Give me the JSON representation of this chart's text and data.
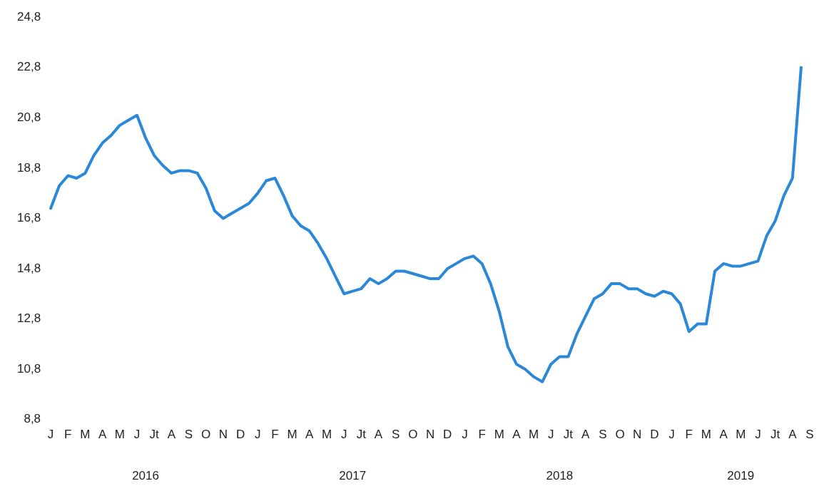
{
  "chart_data": {
    "type": "line",
    "categories": [
      "J",
      null,
      "F",
      null,
      "M",
      null,
      "A",
      null,
      "M",
      null,
      "J",
      null,
      "Jt",
      null,
      "A",
      null,
      "S",
      null,
      "O",
      null,
      "N",
      null,
      "D",
      null,
      "J",
      null,
      "F",
      null,
      "M",
      null,
      "A",
      null,
      "M",
      null,
      "J",
      null,
      "Jt",
      null,
      "A",
      null,
      "S",
      null,
      "O",
      null,
      "N",
      null,
      "D",
      null,
      "J",
      null,
      "F",
      null,
      "M",
      null,
      "A",
      null,
      "M",
      null,
      "J",
      null,
      "Jt",
      null,
      "A",
      null,
      "S",
      null,
      "O",
      null,
      "N",
      null,
      "D",
      null,
      "J",
      null,
      "F",
      null,
      "M",
      null,
      "A",
      null,
      "M",
      null,
      "J",
      null,
      "Jt",
      null,
      "A",
      null,
      "S"
    ],
    "series": [
      {
        "color": "#2b88d8",
        "values": [
          17.2,
          18.1,
          18.5,
          18.4,
          18.6,
          19.3,
          19.8,
          20.1,
          20.5,
          20.7,
          20.9,
          20.0,
          19.3,
          18.9,
          18.6,
          18.7,
          18.7,
          18.6,
          18.0,
          17.1,
          16.8,
          17.0,
          17.2,
          17.4,
          17.8,
          18.3,
          18.4,
          17.7,
          16.9,
          16.5,
          16.3,
          15.8,
          15.2,
          14.5,
          13.8,
          13.9,
          14.0,
          14.4,
          14.2,
          14.4,
          14.7,
          14.7,
          14.6,
          14.5,
          14.4,
          14.4,
          14.8,
          15.0,
          15.2,
          15.3,
          15.0,
          14.2,
          13.1,
          11.7,
          11.0,
          10.8,
          10.5,
          10.3,
          11.0,
          11.3,
          11.3,
          12.2,
          12.9,
          13.6,
          13.8,
          14.2,
          14.2,
          14.0,
          14.0,
          13.8,
          13.7,
          13.9,
          13.8,
          13.4,
          12.3,
          12.6,
          12.6,
          14.7,
          15.0,
          14.9,
          14.9,
          15.0,
          15.1,
          16.1,
          16.7,
          17.7,
          18.4,
          22.8,
          null
        ]
      }
    ],
    "ylim": [
      8.8,
      24.8
    ],
    "yticks": [
      {
        "value": 8.8,
        "label": "8,8"
      },
      {
        "value": 10.8,
        "label": "10,8"
      },
      {
        "value": 12.8,
        "label": "12,8"
      },
      {
        "value": 14.8,
        "label": "14,8"
      },
      {
        "value": 16.8,
        "label": "16,8"
      },
      {
        "value": 18.8,
        "label": "18,8"
      },
      {
        "value": 20.8,
        "label": "20,8"
      },
      {
        "value": 22.8,
        "label": "22,8"
      },
      {
        "value": 24.8,
        "label": "24,8"
      }
    ],
    "annotations": [
      "2016",
      "2017",
      "2018",
      "2019"
    ],
    "grid": false,
    "legend": false,
    "marker": "none",
    "line_style": "solid"
  }
}
